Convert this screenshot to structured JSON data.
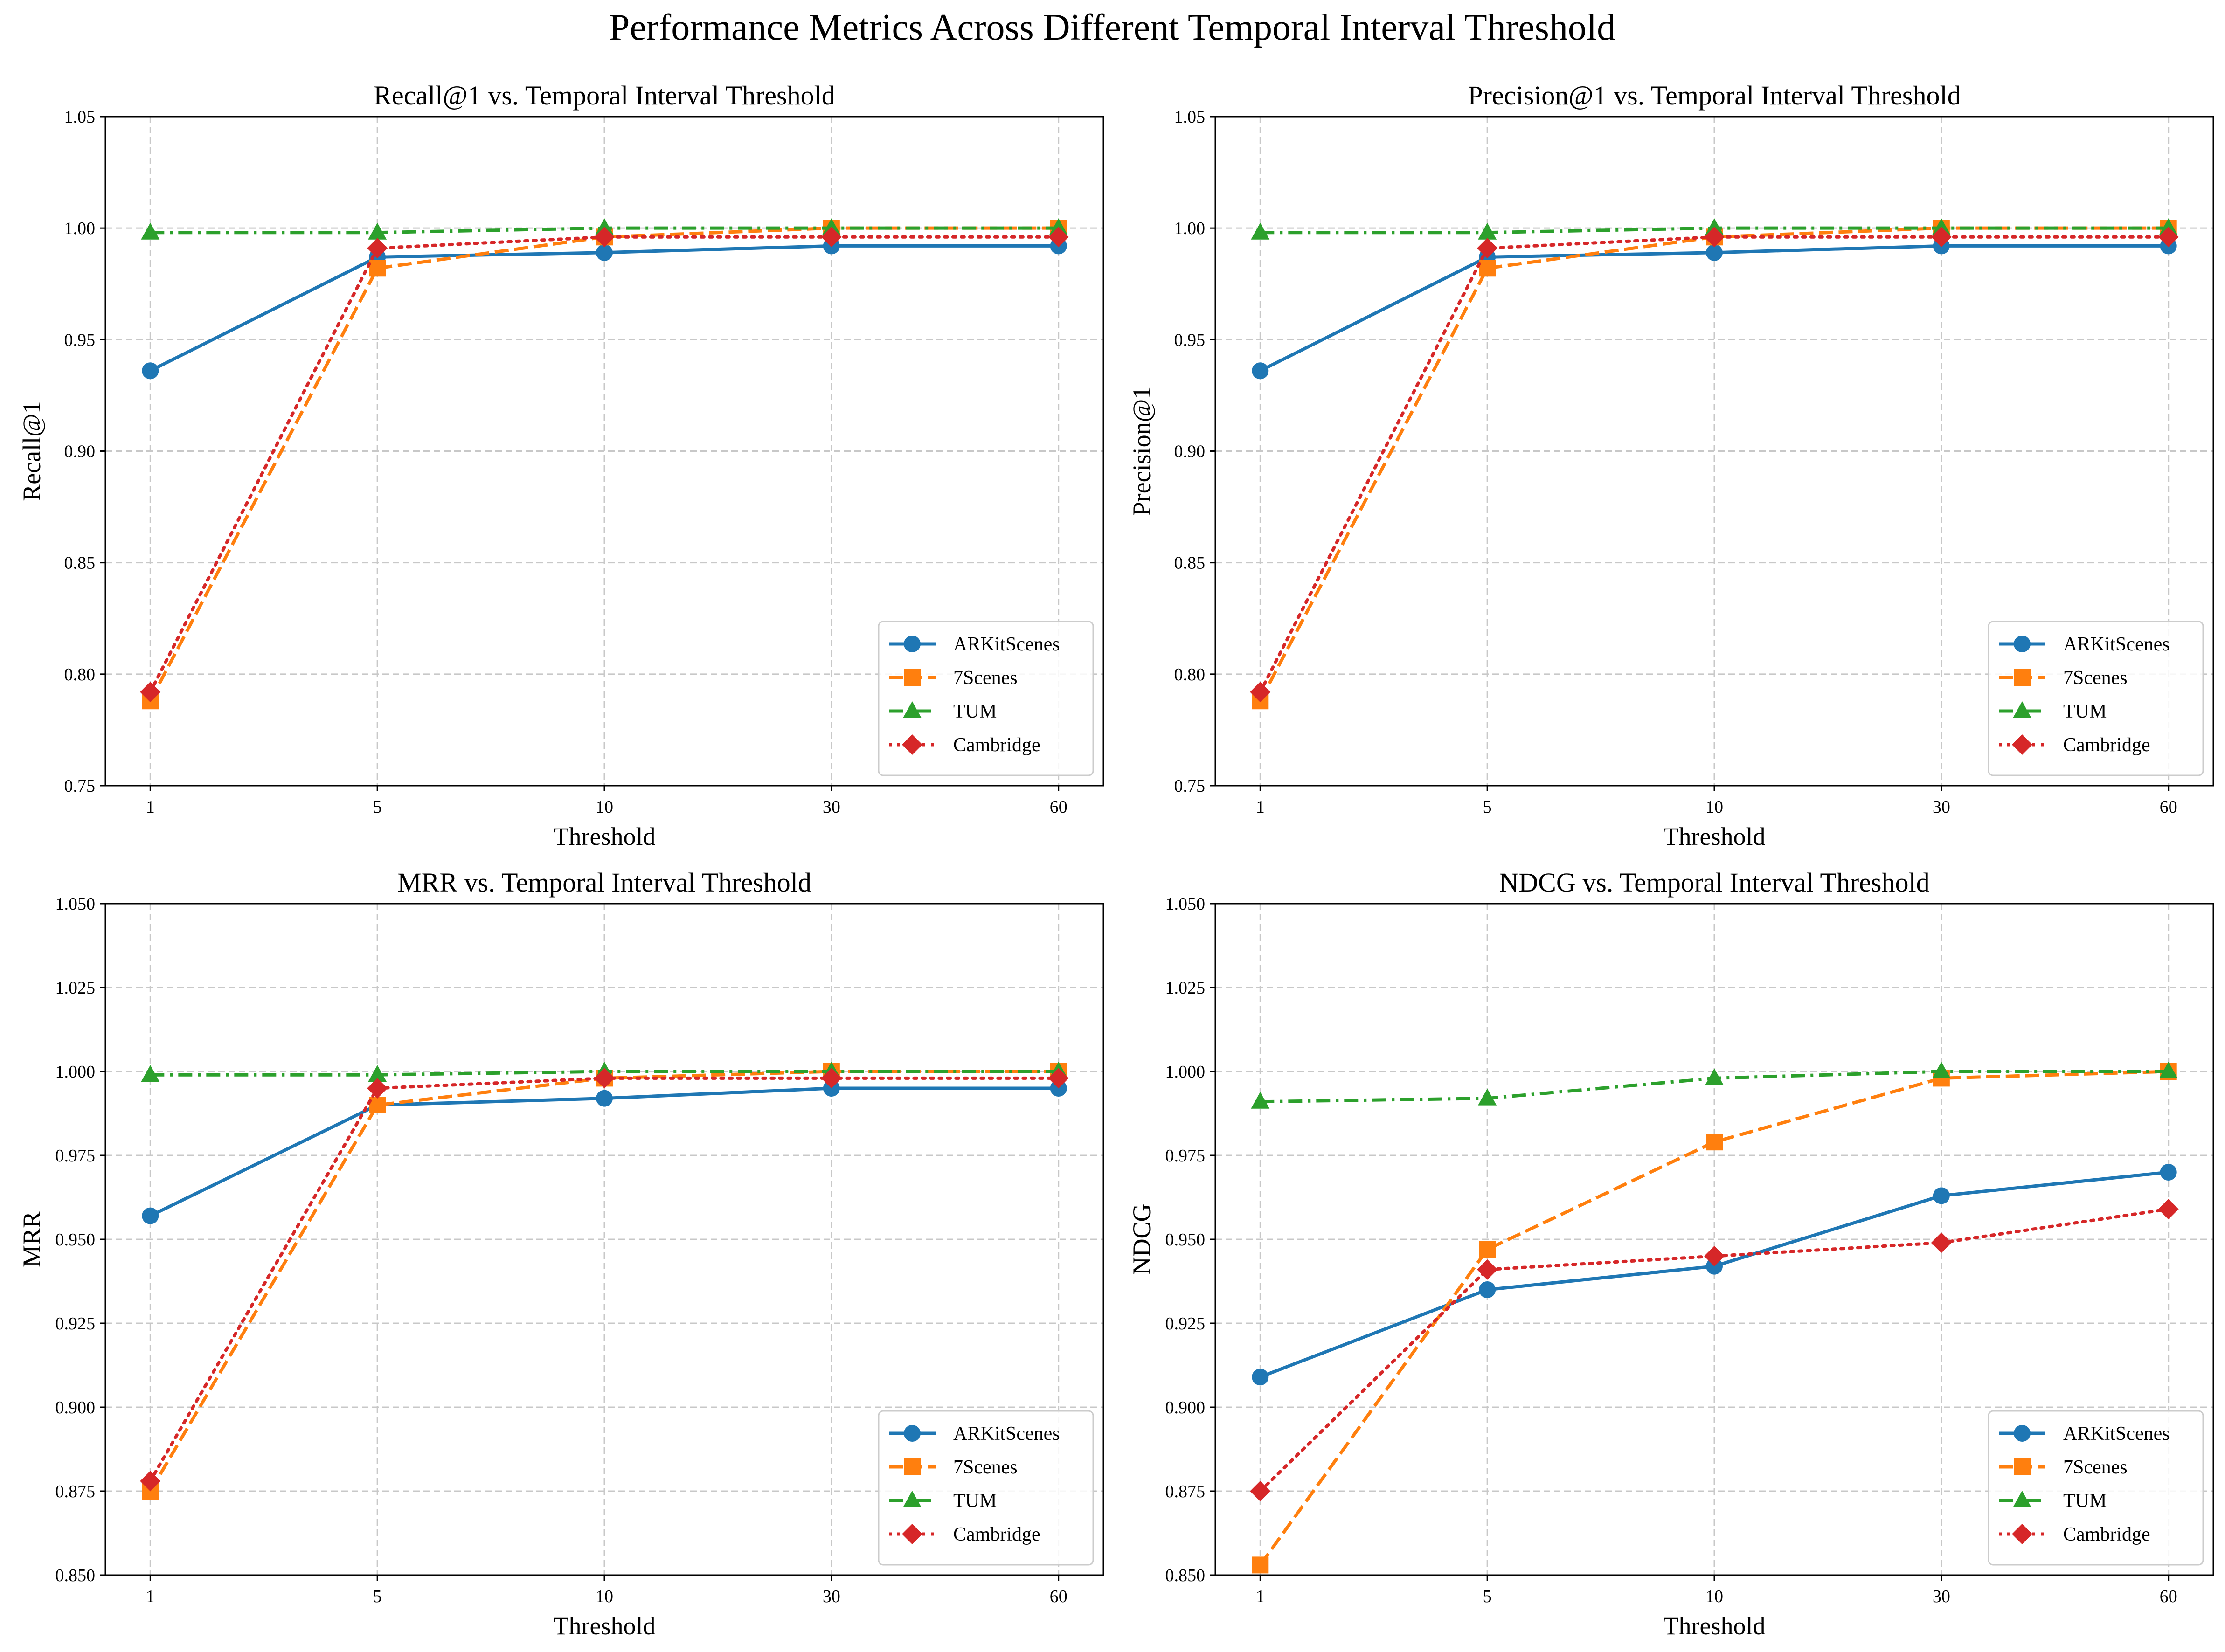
{
  "figure": {
    "title": "Performance Metrics Across Different Temporal Interval Threshold"
  },
  "chart_data": [
    {
      "type": "line",
      "title": "Recall@1 vs. Temporal Interval Threshold",
      "xlabel": "Threshold",
      "ylabel": "Recall@1",
      "x": [
        "1",
        "5",
        "10",
        "30",
        "60"
      ],
      "ylim": [
        0.75,
        1.05
      ],
      "yticks": [
        "0.75",
        "0.80",
        "0.85",
        "0.90",
        "0.95",
        "1.00",
        "1.05"
      ],
      "grid": true,
      "legend_position": "lower-right",
      "series": [
        {
          "name": "ARKitScenes",
          "color": "#1f77b4",
          "linestyle": "solid",
          "marker": "circle",
          "values": [
            0.936,
            0.987,
            0.989,
            0.992,
            0.992
          ]
        },
        {
          "name": "7Scenes",
          "color": "#ff7f0e",
          "linestyle": "dashed",
          "marker": "square",
          "values": [
            0.788,
            0.982,
            0.996,
            1.0,
            1.0
          ]
        },
        {
          "name": "TUM",
          "color": "#2ca02c",
          "linestyle": "dashdot",
          "marker": "triangle",
          "values": [
            0.998,
            0.998,
            1.0,
            1.0,
            1.0
          ]
        },
        {
          "name": "Cambridge",
          "color": "#d62728",
          "linestyle": "dotted",
          "marker": "diamond",
          "values": [
            0.792,
            0.991,
            0.996,
            0.996,
            0.996
          ]
        }
      ]
    },
    {
      "type": "line",
      "title": "Precision@1 vs. Temporal Interval Threshold",
      "xlabel": "Threshold",
      "ylabel": "Precision@1",
      "x": [
        "1",
        "5",
        "10",
        "30",
        "60"
      ],
      "ylim": [
        0.75,
        1.05
      ],
      "yticks": [
        "0.75",
        "0.80",
        "0.85",
        "0.90",
        "0.95",
        "1.00",
        "1.05"
      ],
      "grid": true,
      "legend_position": "lower-right",
      "series": [
        {
          "name": "ARKitScenes",
          "color": "#1f77b4",
          "linestyle": "solid",
          "marker": "circle",
          "values": [
            0.936,
            0.987,
            0.989,
            0.992,
            0.992
          ]
        },
        {
          "name": "7Scenes",
          "color": "#ff7f0e",
          "linestyle": "dashed",
          "marker": "square",
          "values": [
            0.788,
            0.982,
            0.996,
            1.0,
            1.0
          ]
        },
        {
          "name": "TUM",
          "color": "#2ca02c",
          "linestyle": "dashdot",
          "marker": "triangle",
          "values": [
            0.998,
            0.998,
            1.0,
            1.0,
            1.0
          ]
        },
        {
          "name": "Cambridge",
          "color": "#d62728",
          "linestyle": "dotted",
          "marker": "diamond",
          "values": [
            0.792,
            0.991,
            0.996,
            0.996,
            0.996
          ]
        }
      ]
    },
    {
      "type": "line",
      "title": "MRR vs. Temporal Interval Threshold",
      "xlabel": "Threshold",
      "ylabel": "MRR",
      "x": [
        "1",
        "5",
        "10",
        "30",
        "60"
      ],
      "ylim": [
        0.85,
        1.05
      ],
      "yticks": [
        "0.850",
        "0.875",
        "0.900",
        "0.925",
        "0.950",
        "0.975",
        "1.000",
        "1.025",
        "1.050"
      ],
      "grid": true,
      "legend_position": "lower-right",
      "series": [
        {
          "name": "ARKitScenes",
          "color": "#1f77b4",
          "linestyle": "solid",
          "marker": "circle",
          "values": [
            0.957,
            0.99,
            0.992,
            0.995,
            0.995
          ]
        },
        {
          "name": "7Scenes",
          "color": "#ff7f0e",
          "linestyle": "dashed",
          "marker": "square",
          "values": [
            0.875,
            0.99,
            0.998,
            1.0,
            1.0
          ]
        },
        {
          "name": "TUM",
          "color": "#2ca02c",
          "linestyle": "dashdot",
          "marker": "triangle",
          "values": [
            0.999,
            0.999,
            1.0,
            1.0,
            1.0
          ]
        },
        {
          "name": "Cambridge",
          "color": "#d62728",
          "linestyle": "dotted",
          "marker": "diamond",
          "values": [
            0.878,
            0.995,
            0.998,
            0.998,
            0.998
          ]
        }
      ]
    },
    {
      "type": "line",
      "title": "NDCG vs. Temporal Interval Threshold",
      "xlabel": "Threshold",
      "ylabel": "NDCG",
      "x": [
        "1",
        "5",
        "10",
        "30",
        "60"
      ],
      "ylim": [
        0.85,
        1.05
      ],
      "yticks": [
        "0.850",
        "0.875",
        "0.900",
        "0.925",
        "0.950",
        "0.975",
        "1.000",
        "1.025",
        "1.050"
      ],
      "grid": true,
      "legend_position": "lower-right",
      "series": [
        {
          "name": "ARKitScenes",
          "color": "#1f77b4",
          "linestyle": "solid",
          "marker": "circle",
          "values": [
            0.909,
            0.935,
            0.942,
            0.963,
            0.97
          ]
        },
        {
          "name": "7Scenes",
          "color": "#ff7f0e",
          "linestyle": "dashed",
          "marker": "square",
          "values": [
            0.853,
            0.947,
            0.979,
            0.998,
            1.0
          ]
        },
        {
          "name": "TUM",
          "color": "#2ca02c",
          "linestyle": "dashdot",
          "marker": "triangle",
          "values": [
            0.991,
            0.992,
            0.998,
            1.0,
            1.0
          ]
        },
        {
          "name": "Cambridge",
          "color": "#d62728",
          "linestyle": "dotted",
          "marker": "diamond",
          "values": [
            0.875,
            0.941,
            0.945,
            0.949,
            0.959
          ]
        }
      ]
    }
  ]
}
